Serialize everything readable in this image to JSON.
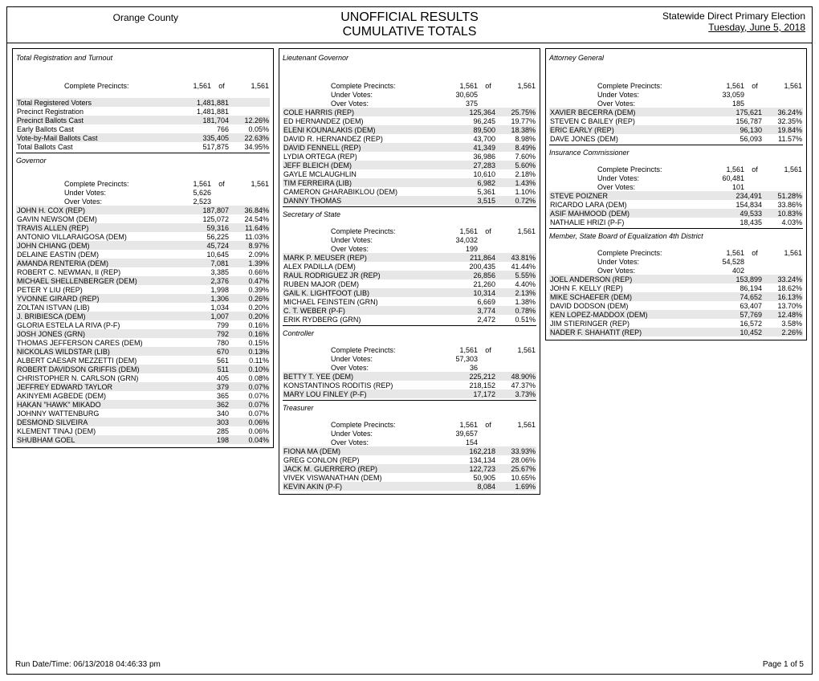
{
  "header": {
    "county": "Orange County",
    "title1": "UNOFFICIAL RESULTS",
    "title2": "CUMULATIVE TOTALS",
    "election": "Statewide Direct Primary Election",
    "date": "Tuesday, June 5, 2018"
  },
  "footer": {
    "runtime": "Run Date/Time:  06/13/2018 04:46:33 pm",
    "page": "Page 1 of 5"
  },
  "labels": {
    "complete_precincts": "Complete Precincts:",
    "under_votes": "Under Votes:",
    "over_votes": "Over Votes:",
    "of": "of"
  },
  "col1": {
    "turnout_title": "Total Registration and Turnout",
    "cp_a": "1,561",
    "cp_b": "1,561",
    "rows": [
      {
        "label": "Total Registered Voters",
        "v": "1,481,881",
        "pct": "",
        "shade": true
      },
      {
        "label": "Precinct Registration",
        "v": "1,481,881",
        "pct": ""
      },
      {
        "label": "Precinct Ballots Cast",
        "v": "181,704",
        "pct": "12.26%",
        "shade": true
      },
      {
        "label": "Early Ballots Cast",
        "v": "766",
        "pct": "0.05%"
      },
      {
        "label": "Vote-by-Mail Ballots Cast",
        "v": "335,405",
        "pct": "22.63%",
        "shade": true
      },
      {
        "label": "Total Ballots Cast",
        "v": "517,875",
        "pct": "34.95%"
      }
    ],
    "gov_title": "Governor",
    "gov_cp_a": "1,561",
    "gov_cp_b": "1,561",
    "gov_under": "5,626",
    "gov_over": "2,523",
    "gov_rows": [
      {
        "label": "JOHN H. COX (REP)",
        "v": "187,807",
        "pct": "36.84%",
        "shade": true
      },
      {
        "label": "GAVIN NEWSOM (DEM)",
        "v": "125,072",
        "pct": "24.54%"
      },
      {
        "label": "TRAVIS ALLEN (REP)",
        "v": "59,316",
        "pct": "11.64%",
        "shade": true
      },
      {
        "label": "ANTONIO VILLARAIGOSA (DEM)",
        "v": "56,225",
        "pct": "11.03%"
      },
      {
        "label": "JOHN CHIANG (DEM)",
        "v": "45,724",
        "pct": "8.97%",
        "shade": true
      },
      {
        "label": "DELAINE EASTIN (DEM)",
        "v": "10,645",
        "pct": "2.09%"
      },
      {
        "label": "AMANDA RENTERIA (DEM)",
        "v": "7,081",
        "pct": "1.39%",
        "shade": true
      },
      {
        "label": "ROBERT C. NEWMAN, II (REP)",
        "v": "3,385",
        "pct": "0.66%"
      },
      {
        "label": "MICHAEL SHELLENBERGER (DEM)",
        "v": "2,376",
        "pct": "0.47%",
        "shade": true
      },
      {
        "label": "PETER Y LIU (REP)",
        "v": "1,998",
        "pct": "0.39%"
      },
      {
        "label": "YVONNE GIRARD (REP)",
        "v": "1,306",
        "pct": "0.26%",
        "shade": true
      },
      {
        "label": "ZOLTAN ISTVAN (LIB)",
        "v": "1,034",
        "pct": "0.20%"
      },
      {
        "label": "J. BRIBIESCA (DEM)",
        "v": "1,007",
        "pct": "0.20%",
        "shade": true
      },
      {
        "label": "GLORIA ESTELA LA RIVA (P-F)",
        "v": "799",
        "pct": "0.16%"
      },
      {
        "label": "JOSH JONES (GRN)",
        "v": "792",
        "pct": "0.16%",
        "shade": true
      },
      {
        "label": "THOMAS JEFFERSON CARES (DEM)",
        "v": "780",
        "pct": "0.15%"
      },
      {
        "label": "NICKOLAS WILDSTAR (LIB)",
        "v": "670",
        "pct": "0.13%",
        "shade": true
      },
      {
        "label": "ALBERT CAESAR MEZZETTI (DEM)",
        "v": "561",
        "pct": "0.11%"
      },
      {
        "label": "ROBERT DAVIDSON GRIFFIS (DEM)",
        "v": "511",
        "pct": "0.10%",
        "shade": true
      },
      {
        "label": "CHRISTOPHER N. CARLSON (GRN)",
        "v": "405",
        "pct": "0.08%"
      },
      {
        "label": "JEFFREY EDWARD TAYLOR",
        "v": "379",
        "pct": "0.07%",
        "shade": true
      },
      {
        "label": "AKINYEMI AGBEDE (DEM)",
        "v": "365",
        "pct": "0.07%"
      },
      {
        "label": "HAKAN \"HAWK\" MIKADO",
        "v": "362",
        "pct": "0.07%",
        "shade": true
      },
      {
        "label": "JOHNNY WATTENBURG",
        "v": "340",
        "pct": "0.07%"
      },
      {
        "label": "DESMOND SILVEIRA",
        "v": "303",
        "pct": "0.06%",
        "shade": true
      },
      {
        "label": "KLEMENT TINAJ (DEM)",
        "v": "285",
        "pct": "0.06%"
      },
      {
        "label": "SHUBHAM GOEL",
        "v": "198",
        "pct": "0.04%",
        "shade": true
      }
    ]
  },
  "col2": {
    "lg_title": "Lieutenant Governor",
    "lg_cp_a": "1,561",
    "lg_cp_b": "1,561",
    "lg_under": "30,605",
    "lg_over": "375",
    "lg_rows": [
      {
        "label": "COLE HARRIS (REP)",
        "v": "125,364",
        "pct": "25.75%",
        "shade": true
      },
      {
        "label": "ED HERNANDEZ (DEM)",
        "v": "96,245",
        "pct": "19.77%"
      },
      {
        "label": "ELENI KOUNALAKIS (DEM)",
        "v": "89,500",
        "pct": "18.38%",
        "shade": true
      },
      {
        "label": "DAVID R. HERNANDEZ (REP)",
        "v": "43,700",
        "pct": "8.98%"
      },
      {
        "label": "DAVID FENNELL (REP)",
        "v": "41,349",
        "pct": "8.49%",
        "shade": true
      },
      {
        "label": "LYDIA ORTEGA (REP)",
        "v": "36,986",
        "pct": "7.60%"
      },
      {
        "label": "JEFF BLEICH (DEM)",
        "v": "27,283",
        "pct": "5.60%",
        "shade": true
      },
      {
        "label": "GAYLE MCLAUGHLIN",
        "v": "10,610",
        "pct": "2.18%"
      },
      {
        "label": "TIM FERREIRA (LIB)",
        "v": "6,982",
        "pct": "1.43%",
        "shade": true
      },
      {
        "label": "CAMERON GHARABIKLOU (DEM)",
        "v": "5,361",
        "pct": "1.10%"
      },
      {
        "label": "DANNY THOMAS",
        "v": "3,515",
        "pct": "0.72%",
        "shade": true
      }
    ],
    "sos_title": "Secretary of State",
    "sos_cp_a": "1,561",
    "sos_cp_b": "1,561",
    "sos_under": "34,032",
    "sos_over": "199",
    "sos_rows": [
      {
        "label": "MARK P. MEUSER (REP)",
        "v": "211,864",
        "pct": "43.81%",
        "shade": true
      },
      {
        "label": "ALEX PADILLA (DEM)",
        "v": "200,435",
        "pct": "41.44%"
      },
      {
        "label": "RAUL RODRIGUEZ JR (REP)",
        "v": "26,856",
        "pct": "5.55%",
        "shade": true
      },
      {
        "label": "RUBEN MAJOR (DEM)",
        "v": "21,260",
        "pct": "4.40%"
      },
      {
        "label": "GAIL K. LIGHTFOOT (LIB)",
        "v": "10,314",
        "pct": "2.13%",
        "shade": true
      },
      {
        "label": "MICHAEL FEINSTEIN (GRN)",
        "v": "6,669",
        "pct": "1.38%"
      },
      {
        "label": "C. T. WEBER (P-F)",
        "v": "3,774",
        "pct": "0.78%",
        "shade": true
      },
      {
        "label": "ERIK RYDBERG (GRN)",
        "v": "2,472",
        "pct": "0.51%"
      }
    ],
    "ctrl_title": "Controller",
    "ctrl_cp_a": "1,561",
    "ctrl_cp_b": "1,561",
    "ctrl_under": "57,303",
    "ctrl_over": "36",
    "ctrl_rows": [
      {
        "label": "BETTY T. YEE (DEM)",
        "v": "225,212",
        "pct": "48.90%",
        "shade": true
      },
      {
        "label": "KONSTANTINOS RODITIS (REP)",
        "v": "218,152",
        "pct": "47.37%"
      },
      {
        "label": "MARY LOU FINLEY (P-F)",
        "v": "17,172",
        "pct": "3.73%",
        "shade": true
      }
    ],
    "tre_title": "Treasurer",
    "tre_cp_a": "1,561",
    "tre_cp_b": "1,561",
    "tre_under": "39,657",
    "tre_over": "154",
    "tre_rows": [
      {
        "label": "FIONA MA (DEM)",
        "v": "162,218",
        "pct": "33.93%",
        "shade": true
      },
      {
        "label": "GREG CONLON (REP)",
        "v": "134,134",
        "pct": "28.06%"
      },
      {
        "label": "JACK M. GUERRERO (REP)",
        "v": "122,723",
        "pct": "25.67%",
        "shade": true
      },
      {
        "label": "VIVEK VISWANATHAN (DEM)",
        "v": "50,905",
        "pct": "10.65%"
      },
      {
        "label": "KEVIN AKIN (P-F)",
        "v": "8,084",
        "pct": "1.69%",
        "shade": true
      }
    ]
  },
  "col3": {
    "ag_title": "Attorney General",
    "ag_cp_a": "1,561",
    "ag_cp_b": "1,561",
    "ag_under": "33,059",
    "ag_over": "185",
    "ag_rows": [
      {
        "label": "XAVIER BECERRA (DEM)",
        "v": "175,621",
        "pct": "36.24%",
        "shade": true
      },
      {
        "label": "STEVEN C BAILEY (REP)",
        "v": "156,787",
        "pct": "32.35%"
      },
      {
        "label": "ERIC EARLY (REP)",
        "v": "96,130",
        "pct": "19.84%",
        "shade": true
      },
      {
        "label": "DAVE JONES (DEM)",
        "v": "56,093",
        "pct": "11.57%"
      }
    ],
    "ins_title": "Insurance Commissioner",
    "ins_cp_a": "1,561",
    "ins_cp_b": "1,561",
    "ins_under": "60,481",
    "ins_over": "101",
    "ins_rows": [
      {
        "label": "STEVE POIZNER",
        "v": "234,491",
        "pct": "51.28%",
        "shade": true
      },
      {
        "label": "RICARDO LARA (DEM)",
        "v": "154,834",
        "pct": "33.86%"
      },
      {
        "label": "ASIF MAHMOOD (DEM)",
        "v": "49,533",
        "pct": "10.83%",
        "shade": true
      },
      {
        "label": "NATHALIE HRIZI (P-F)",
        "v": "18,435",
        "pct": "4.03%"
      }
    ],
    "boe_title": "Member, State Board of Equalization 4th District",
    "boe_cp_a": "1,561",
    "boe_cp_b": "1,561",
    "boe_under": "54,528",
    "boe_over": "402",
    "boe_rows": [
      {
        "label": "JOEL ANDERSON (REP)",
        "v": "153,899",
        "pct": "33.24%",
        "shade": true
      },
      {
        "label": "JOHN F. KELLY (REP)",
        "v": "86,194",
        "pct": "18.62%"
      },
      {
        "label": "MIKE SCHAEFER (DEM)",
        "v": "74,652",
        "pct": "16.13%",
        "shade": true
      },
      {
        "label": "DAVID DODSON (DEM)",
        "v": "63,407",
        "pct": "13.70%"
      },
      {
        "label": "KEN LOPEZ-MADDOX (DEM)",
        "v": "57,769",
        "pct": "12.48%",
        "shade": true
      },
      {
        "label": "JIM STIERINGER (REP)",
        "v": "16,572",
        "pct": "3.58%"
      },
      {
        "label": "NADER F. SHAHATIT (REP)",
        "v": "10,452",
        "pct": "2.26%",
        "shade": true
      }
    ]
  }
}
